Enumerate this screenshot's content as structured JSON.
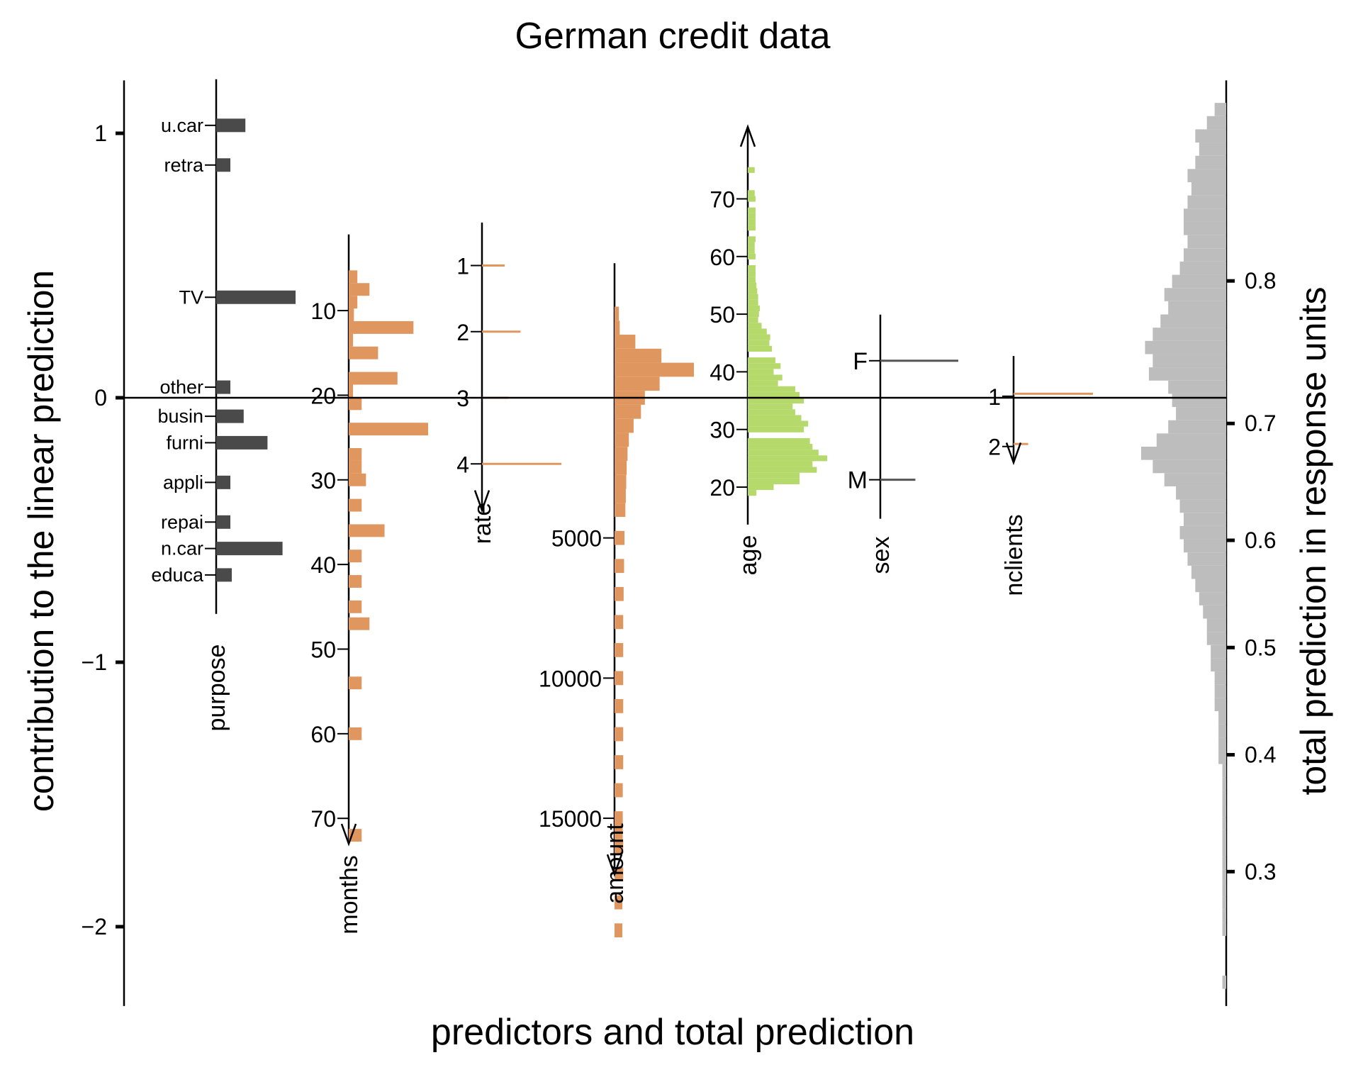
{
  "chart_data": {
    "type": "nomogram",
    "title": "German credit data",
    "xlabel": "predictors and total prediction",
    "ylabel_left": "contribution to the linear prediction",
    "ylabel_right": "total prediction in response units",
    "left_axis": {
      "ylim": [
        -2.3,
        1.2
      ],
      "ticks": [
        1,
        0,
        -1,
        -2
      ],
      "tick_labels": [
        "1",
        "0",
        "−1",
        "−2"
      ]
    },
    "right_axis": {
      "ticks": [
        0.8,
        0.7,
        0.6,
        0.5,
        0.4,
        0.3
      ],
      "tick_labels": [
        "0.8",
        "0.7",
        "0.6",
        "0.5",
        "0.4",
        "0.3"
      ]
    },
    "colors": {
      "categorical": "#4a4a4a",
      "numeric": "#e0965f",
      "age": "#b6d96c",
      "total": "#bdbdbd",
      "axis": "#000000",
      "sex_bar": "#555555"
    },
    "predictors": [
      {
        "name": "purpose",
        "kind": "categorical",
        "levels": [
          {
            "label": "u.car",
            "contribution": 1.03,
            "frequency": 103
          },
          {
            "label": "retra",
            "contribution": 0.88,
            "frequency": 50
          },
          {
            "label": "TV",
            "contribution": 0.38,
            "frequency": 280
          },
          {
            "label": "other",
            "contribution": 0.04,
            "frequency": 50
          },
          {
            "label": "busin",
            "contribution": -0.07,
            "frequency": 97
          },
          {
            "label": "furni",
            "contribution": -0.17,
            "frequency": 181
          },
          {
            "label": "appli",
            "contribution": -0.32,
            "frequency": 50
          },
          {
            "label": "repai",
            "contribution": -0.47,
            "frequency": 50
          },
          {
            "label": "n.car",
            "contribution": -0.57,
            "frequency": 234
          },
          {
            "label": "educa",
            "contribution": -0.67,
            "frequency": 55
          }
        ]
      },
      {
        "name": "months",
        "kind": "numeric",
        "axis": {
          "zero_at": 20.3,
          "slope": -0.032,
          "span": [
            1,
            73
          ],
          "direction": "down",
          "ticks": [
            10,
            20,
            30,
            40,
            50,
            60,
            70
          ]
        },
        "bars": [
          {
            "x": 6,
            "count": 20
          },
          {
            "x": 7.5,
            "count": 48
          },
          {
            "x": 9,
            "count": 20
          },
          {
            "x": 10.5,
            "count": 12
          },
          {
            "x": 12,
            "count": 150
          },
          {
            "x": 13.5,
            "count": 10
          },
          {
            "x": 15,
            "count": 68
          },
          {
            "x": 18,
            "count": 113
          },
          {
            "x": 19.5,
            "count": 10
          },
          {
            "x": 21,
            "count": 30
          },
          {
            "x": 24,
            "count": 184
          },
          {
            "x": 27,
            "count": 30
          },
          {
            "x": 28.5,
            "count": 30
          },
          {
            "x": 30,
            "count": 40
          },
          {
            "x": 33,
            "count": 30
          },
          {
            "x": 36,
            "count": 83
          },
          {
            "x": 39,
            "count": 30
          },
          {
            "x": 42,
            "count": 30
          },
          {
            "x": 45,
            "count": 30
          },
          {
            "x": 47,
            "count": 48
          },
          {
            "x": 54,
            "count": 30
          },
          {
            "x": 60,
            "count": 30
          },
          {
            "x": 72,
            "count": 30
          }
        ]
      },
      {
        "name": "rate",
        "kind": "numeric",
        "axis": {
          "zero_at": 3.0,
          "slope": -0.25,
          "span": [
            0.35,
            4.7
          ],
          "direction": "down",
          "ticks": [
            1,
            2,
            3,
            4
          ]
        },
        "bars": [
          {
            "x": 1,
            "count": 136
          },
          {
            "x": 2,
            "count": 231
          },
          {
            "x": 3,
            "count": 157
          },
          {
            "x": 4,
            "count": 476
          }
        ]
      },
      {
        "name": "amount",
        "kind": "numeric",
        "axis": {
          "zero_at": 0,
          "slope": -0.000106,
          "span": [
            -4800,
            17000
          ],
          "direction": "down",
          "ticks": [
            5000,
            10000,
            15000
          ]
        },
        "bars": [
          {
            "x": -3000,
            "count": 10
          },
          {
            "x": -2500,
            "count": 12
          },
          {
            "x": -2000,
            "count": 48
          },
          {
            "x": -1500,
            "count": 108
          },
          {
            "x": -1000,
            "count": 183
          },
          {
            "x": -500,
            "count": 104
          },
          {
            "x": 0,
            "count": 70
          },
          {
            "x": 500,
            "count": 61
          },
          {
            "x": 1000,
            "count": 44
          },
          {
            "x": 1500,
            "count": 33
          },
          {
            "x": 2000,
            "count": 30
          },
          {
            "x": 2500,
            "count": 28
          },
          {
            "x": 3000,
            "count": 27
          },
          {
            "x": 3500,
            "count": 26
          },
          {
            "x": 4000,
            "count": 25
          },
          {
            "x": 5000,
            "count": 23
          },
          {
            "x": 6000,
            "count": 22
          },
          {
            "x": 7000,
            "count": 21
          },
          {
            "x": 8000,
            "count": 20
          },
          {
            "x": 9000,
            "count": 20
          },
          {
            "x": 10000,
            "count": 20
          },
          {
            "x": 11000,
            "count": 20
          },
          {
            "x": 12000,
            "count": 20
          },
          {
            "x": 13000,
            "count": 20
          },
          {
            "x": 14000,
            "count": 19
          },
          {
            "x": 15000,
            "count": 19
          },
          {
            "x": 15500,
            "count": 19
          },
          {
            "x": 16000,
            "count": 20
          },
          {
            "x": 17000,
            "count": 20
          },
          {
            "x": 18000,
            "count": 18
          },
          {
            "x": 19000,
            "count": 18
          }
        ]
      },
      {
        "name": "age",
        "kind": "numeric",
        "axis": {
          "zero_at": 35.5,
          "slope": 0.0218,
          "span": [
            13.5,
            82.5
          ],
          "direction": "up",
          "ticks": [
            20,
            30,
            40,
            50,
            60,
            70
          ]
        },
        "bars": [
          {
            "x": 19,
            "count": 10
          },
          {
            "x": 20,
            "count": 30
          },
          {
            "x": 21,
            "count": 60
          },
          {
            "x": 22,
            "count": 60
          },
          {
            "x": 23,
            "count": 80
          },
          {
            "x": 24,
            "count": 75
          },
          {
            "x": 25,
            "count": 92
          },
          {
            "x": 26,
            "count": 82
          },
          {
            "x": 27,
            "count": 75
          },
          {
            "x": 28,
            "count": 72
          },
          {
            "x": 30,
            "count": 65
          },
          {
            "x": 31,
            "count": 70
          },
          {
            "x": 32,
            "count": 62
          },
          {
            "x": 33,
            "count": 55
          },
          {
            "x": 34,
            "count": 52
          },
          {
            "x": 35,
            "count": 65
          },
          {
            "x": 36,
            "count": 60
          },
          {
            "x": 37,
            "count": 55
          },
          {
            "x": 38,
            "count": 35
          },
          {
            "x": 39,
            "count": 40
          },
          {
            "x": 40,
            "count": 30
          },
          {
            "x": 41,
            "count": 38
          },
          {
            "x": 42,
            "count": 32
          },
          {
            "x": 44,
            "count": 28
          },
          {
            "x": 45,
            "count": 25
          },
          {
            "x": 46,
            "count": 26
          },
          {
            "x": 47,
            "count": 22
          },
          {
            "x": 48,
            "count": 16
          },
          {
            "x": 49,
            "count": 12
          },
          {
            "x": 50,
            "count": 13
          },
          {
            "x": 51,
            "count": 14
          },
          {
            "x": 52,
            "count": 12
          },
          {
            "x": 53,
            "count": 12
          },
          {
            "x": 54,
            "count": 11
          },
          {
            "x": 55,
            "count": 10
          },
          {
            "x": 56,
            "count": 9
          },
          {
            "x": 57,
            "count": 9
          },
          {
            "x": 58,
            "count": 9
          },
          {
            "x": 60,
            "count": 9
          },
          {
            "x": 61,
            "count": 8
          },
          {
            "x": 62,
            "count": 8
          },
          {
            "x": 63,
            "count": 9
          },
          {
            "x": 65,
            "count": 9
          },
          {
            "x": 66,
            "count": 9
          },
          {
            "x": 67,
            "count": 9
          },
          {
            "x": 68,
            "count": 9
          },
          {
            "x": 70,
            "count": 9
          },
          {
            "x": 71,
            "count": 8
          },
          {
            "x": 75,
            "count": 8
          }
        ]
      },
      {
        "name": "sex",
        "kind": "categorical",
        "levels": [
          {
            "label": "F",
            "contribution": 0.14,
            "frequency": 690
          },
          {
            "label": "M",
            "contribution": -0.31,
            "frequency": 310
          }
        ]
      },
      {
        "name": "nclients",
        "kind": "numeric",
        "axis": {
          "zero_at": 1.03,
          "slope": -0.19,
          "span": [
            0.2,
            2.32
          ],
          "direction": "down",
          "ticks": [
            1,
            2
          ]
        },
        "bars": [
          {
            "x": 0.95,
            "count": 845
          },
          {
            "x": 1.95,
            "count": 155
          }
        ]
      }
    ],
    "total_prediction_hist": [
      {
        "y": 1.09,
        "count": 3
      },
      {
        "y": 1.04,
        "count": 5
      },
      {
        "y": 0.99,
        "count": 8
      },
      {
        "y": 0.94,
        "count": 7
      },
      {
        "y": 0.89,
        "count": 8
      },
      {
        "y": 0.84,
        "count": 10
      },
      {
        "y": 0.79,
        "count": 9
      },
      {
        "y": 0.74,
        "count": 10
      },
      {
        "y": 0.69,
        "count": 11
      },
      {
        "y": 0.64,
        "count": 11
      },
      {
        "y": 0.59,
        "count": 10
      },
      {
        "y": 0.54,
        "count": 11
      },
      {
        "y": 0.49,
        "count": 12
      },
      {
        "y": 0.44,
        "count": 14
      },
      {
        "y": 0.39,
        "count": 16
      },
      {
        "y": 0.34,
        "count": 15
      },
      {
        "y": 0.29,
        "count": 17
      },
      {
        "y": 0.24,
        "count": 19
      },
      {
        "y": 0.19,
        "count": 21
      },
      {
        "y": 0.14,
        "count": 19
      },
      {
        "y": 0.09,
        "count": 20
      },
      {
        "y": 0.04,
        "count": 15
      },
      {
        "y": -0.01,
        "count": 14
      },
      {
        "y": -0.06,
        "count": 13
      },
      {
        "y": -0.11,
        "count": 15
      },
      {
        "y": -0.16,
        "count": 18
      },
      {
        "y": -0.21,
        "count": 22
      },
      {
        "y": -0.26,
        "count": 19
      },
      {
        "y": -0.31,
        "count": 16
      },
      {
        "y": -0.36,
        "count": 13
      },
      {
        "y": -0.41,
        "count": 12
      },
      {
        "y": -0.46,
        "count": 11
      },
      {
        "y": -0.51,
        "count": 12
      },
      {
        "y": -0.56,
        "count": 11
      },
      {
        "y": -0.61,
        "count": 10
      },
      {
        "y": -0.66,
        "count": 9
      },
      {
        "y": -0.71,
        "count": 8
      },
      {
        "y": -0.76,
        "count": 7
      },
      {
        "y": -0.81,
        "count": 6
      },
      {
        "y": -0.86,
        "count": 5
      },
      {
        "y": -0.91,
        "count": 5
      },
      {
        "y": -0.96,
        "count": 4
      },
      {
        "y": -1.01,
        "count": 4
      },
      {
        "y": -1.06,
        "count": 3
      },
      {
        "y": -1.11,
        "count": 3
      },
      {
        "y": -1.16,
        "count": 3
      },
      {
        "y": -1.21,
        "count": 2
      },
      {
        "y": -1.26,
        "count": 2
      },
      {
        "y": -1.31,
        "count": 2
      },
      {
        "y": -1.36,
        "count": 2
      },
      {
        "y": -1.41,
        "count": 1
      },
      {
        "y": -1.46,
        "count": 1
      },
      {
        "y": -1.51,
        "count": 1
      },
      {
        "y": -1.56,
        "count": 1
      },
      {
        "y": -1.61,
        "count": 1
      },
      {
        "y": -1.66,
        "count": 1
      },
      {
        "y": -1.71,
        "count": 1
      },
      {
        "y": -1.76,
        "count": 1
      },
      {
        "y": -1.81,
        "count": 1
      },
      {
        "y": -1.86,
        "count": 1
      },
      {
        "y": -1.91,
        "count": 1
      },
      {
        "y": -1.96,
        "count": 1
      },
      {
        "y": -2.01,
        "count": 1
      },
      {
        "y": -2.21,
        "count": 1
      }
    ]
  }
}
